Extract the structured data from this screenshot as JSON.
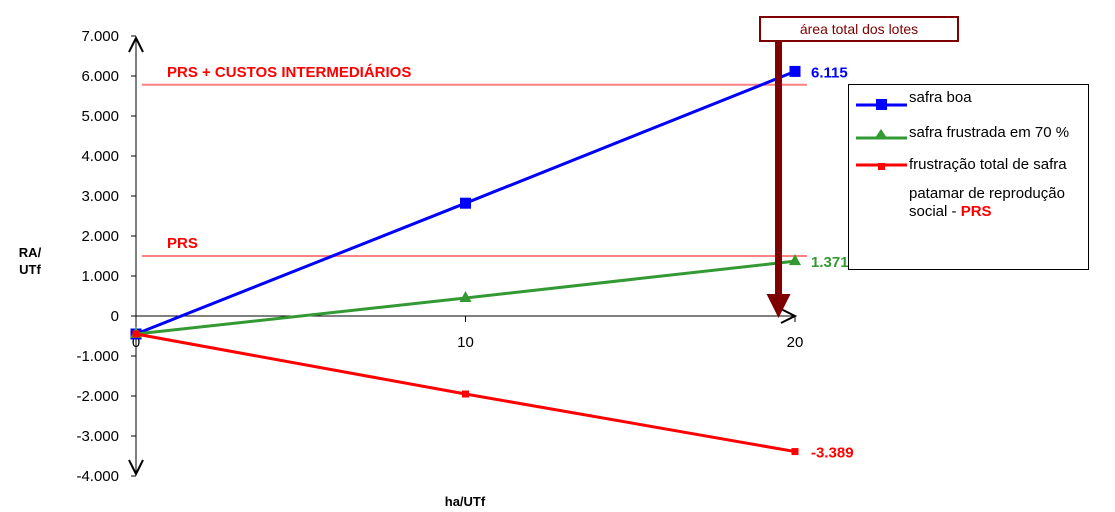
{
  "chart_data": {
    "type": "line",
    "title": "",
    "xlabel": "ha/UTf",
    "ylabel_line1": "RA/",
    "ylabel_line2": "UTf",
    "x": [
      0,
      10,
      20
    ],
    "x_ticks": [
      "0",
      "10",
      "20"
    ],
    "xlim": [
      0,
      20
    ],
    "ylim": [
      -4000,
      7000
    ],
    "y_ticks": [
      {
        "value": 7000,
        "label": "7.000"
      },
      {
        "value": 6000,
        "label": "6.000"
      },
      {
        "value": 5000,
        "label": "5.000"
      },
      {
        "value": 4000,
        "label": "4.000"
      },
      {
        "value": 3000,
        "label": "3.000"
      },
      {
        "value": 2000,
        "label": "2.000"
      },
      {
        "value": 1000,
        "label": "1.000"
      },
      {
        "value": 0,
        "label": "0"
      },
      {
        "value": -1000,
        "label": "-1.000"
      },
      {
        "value": -2000,
        "label": "-2.000"
      },
      {
        "value": -3000,
        "label": "-3.000"
      },
      {
        "value": -4000,
        "label": "-4.000"
      }
    ],
    "grid": false,
    "legend_position": "right",
    "series": [
      {
        "name": "safra boa",
        "values": [
          -450,
          2820,
          6115
        ],
        "color": "#0000ff",
        "marker": "square",
        "end_label": "6.115"
      },
      {
        "name": "safra frustrada em 70 %",
        "values": [
          -450,
          450,
          1371
        ],
        "color": "#339933",
        "marker": "triangle",
        "end_label": "1.371"
      },
      {
        "name": "frustração total de safra",
        "values": [
          -450,
          -1950,
          -3389
        ],
        "color": "#ff0000",
        "marker": "small-square",
        "end_label": "-3.389"
      }
    ],
    "reference_lines": [
      {
        "label": "PRS + CUSTOS INTERMEDIÁRIOS",
        "value": 5780,
        "color": "#ff8080",
        "label_color": "#ff0000"
      },
      {
        "label": "PRS",
        "value": 1500,
        "color": "#ff8080",
        "label_color": "#ff0000"
      }
    ],
    "legend_extra": {
      "text_part1": "patamar de reprodução social - ",
      "text_part2": "PRS"
    },
    "annotation": {
      "text": "área total dos lotes",
      "x": 19.5,
      "color": "#7f0000"
    }
  }
}
